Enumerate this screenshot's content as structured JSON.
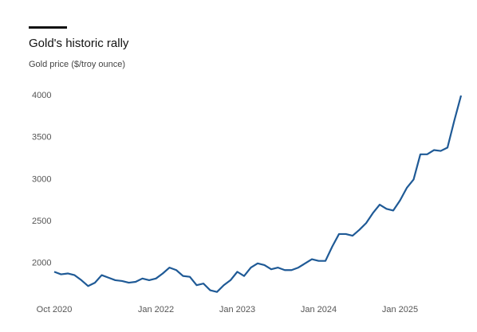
{
  "chart_data": {
    "type": "line",
    "title": "Gold's historic rally",
    "subtitle": "Gold price ($/troy ounce)",
    "x": [
      "2020-10",
      "2020-11",
      "2020-12",
      "2021-01",
      "2021-02",
      "2021-03",
      "2021-04",
      "2021-05",
      "2021-06",
      "2021-07",
      "2021-08",
      "2021-09",
      "2021-10",
      "2021-11",
      "2021-12",
      "2022-01",
      "2022-02",
      "2022-03",
      "2022-04",
      "2022-05",
      "2022-06",
      "2022-07",
      "2022-08",
      "2022-09",
      "2022-10",
      "2022-11",
      "2022-12",
      "2023-01",
      "2023-02",
      "2023-03",
      "2023-04",
      "2023-05",
      "2023-06",
      "2023-07",
      "2023-08",
      "2023-09",
      "2023-10",
      "2023-11",
      "2023-12",
      "2024-01",
      "2024-02",
      "2024-03",
      "2024-04",
      "2024-05",
      "2024-06",
      "2024-07",
      "2024-08",
      "2024-09",
      "2024-10",
      "2024-11",
      "2024-12",
      "2025-01",
      "2025-02",
      "2025-03",
      "2025-04",
      "2025-05",
      "2025-06",
      "2025-07",
      "2025-08",
      "2025-09",
      "2025-10"
    ],
    "series": [
      {
        "name": "Gold price",
        "color": "#1f5a96",
        "values": [
          1900,
          1870,
          1880,
          1860,
          1800,
          1730,
          1770,
          1860,
          1830,
          1800,
          1790,
          1770,
          1780,
          1820,
          1800,
          1820,
          1880,
          1950,
          1920,
          1850,
          1840,
          1740,
          1760,
          1680,
          1660,
          1740,
          1800,
          1900,
          1850,
          1950,
          2000,
          1980,
          1930,
          1950,
          1920,
          1920,
          1950,
          2000,
          2050,
          2030,
          2030,
          2200,
          2350,
          2350,
          2330,
          2400,
          2480,
          2600,
          2700,
          2650,
          2630,
          2750,
          2900,
          3000,
          3300,
          3300,
          3350,
          3340,
          3380,
          3700,
          4000
        ]
      }
    ],
    "xticks": [
      {
        "value": "2020-10",
        "label": "Oct 2020"
      },
      {
        "value": "2022-01",
        "label": "Jan 2022"
      },
      {
        "value": "2023-01",
        "label": "Jan 2023"
      },
      {
        "value": "2024-01",
        "label": "Jan 2024"
      },
      {
        "value": "2025-01",
        "label": "Jan 2025"
      }
    ],
    "ylim": [
      1600,
      4000
    ],
    "yticks": [
      2000,
      2500,
      3000,
      3500,
      4000
    ],
    "grid": false
  }
}
